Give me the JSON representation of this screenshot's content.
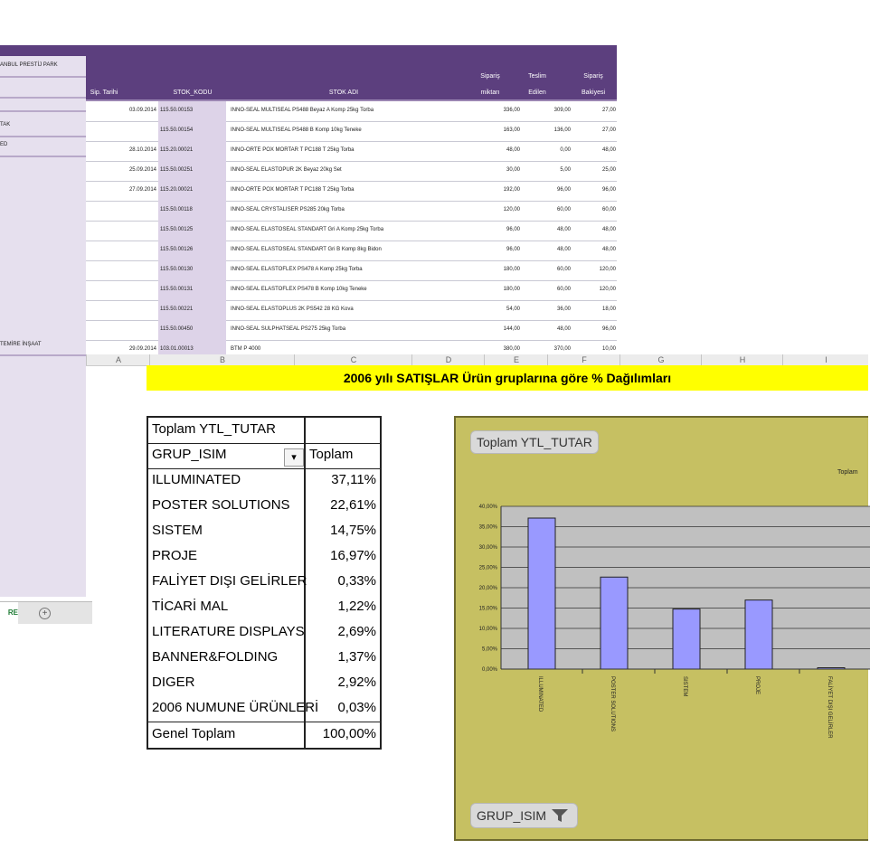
{
  "orders": {
    "headers": {
      "date": "Sip. Tarihi",
      "code": "STOK_KODU",
      "name": "STOK ADI",
      "ordered": [
        "Sipariş",
        "miktarı"
      ],
      "delivered": [
        "Teslim",
        "Edilen"
      ],
      "remaining": [
        "Sipariş",
        "Bakiyesi"
      ]
    },
    "left_labels": [
      "ANBUL PRESTİJ PARK",
      "TAK",
      "ED",
      "TEMİRE İNŞAAT"
    ],
    "rows": [
      {
        "date": "03.09.2014",
        "code": "115.50.00153",
        "name": "INNO-SEAL MULTISEAL PS488 Beyaz A Komp 25kg Torba",
        "ordered": "336,00",
        "delivered": "309,00",
        "remaining": "27,00"
      },
      {
        "date": "",
        "code": "115.50.00154",
        "name": "INNO-SEAL MULTISEAL PS488 B Komp 10kg Teneke",
        "ordered": "163,00",
        "delivered": "136,00",
        "remaining": "27,00"
      },
      {
        "date": "28.10.2014",
        "code": "115.20.00021",
        "name": "INNO-ORTE POX MORTAR T PC188 T 25kg Torba",
        "ordered": "48,00",
        "delivered": "0,00",
        "remaining": "48,00"
      },
      {
        "date": "25.09.2014",
        "code": "115.50.00251",
        "name": "INNO-SEAL ELASTOPUR 2K Beyaz 20kg Set",
        "ordered": "30,00",
        "delivered": "5,00",
        "remaining": "25,00"
      },
      {
        "date": "27.09.2014",
        "code": "115.20.00021",
        "name": "INNO-ORTE POX MORTAR T PC188 T 25kg Torba",
        "ordered": "192,00",
        "delivered": "96,00",
        "remaining": "96,00"
      },
      {
        "date": "",
        "code": "115.50.00118",
        "name": "INNO-SEAL CRYSTALISER PS285 20kg Torba",
        "ordered": "120,00",
        "delivered": "60,00",
        "remaining": "60,00"
      },
      {
        "date": "",
        "code": "115.50.00125",
        "name": "INNO-SEAL ELASTOSEAL STANDART Gri A Komp 25kg Torba",
        "ordered": "96,00",
        "delivered": "48,00",
        "remaining": "48,00"
      },
      {
        "date": "",
        "code": "115.50.00126",
        "name": "INNO-SEAL ELASTOSEAL STANDART Gri B Komp 8kg Bidon",
        "ordered": "96,00",
        "delivered": "48,00",
        "remaining": "48,00"
      },
      {
        "date": "",
        "code": "115.50.00130",
        "name": "INNO-SEAL ELASTOFLEX PS478 A Komp 25kg Torba",
        "ordered": "180,00",
        "delivered": "60,00",
        "remaining": "120,00"
      },
      {
        "date": "",
        "code": "115.50.00131",
        "name": "INNO-SEAL ELASTOFLEX PS478 B Komp 10kg Teneke",
        "ordered": "180,00",
        "delivered": "60,00",
        "remaining": "120,00"
      },
      {
        "date": "",
        "code": "115.50.00221",
        "name": "INNO-SEAL ELASTOPLUS 2K PS542 28 KG Kova",
        "ordered": "54,00",
        "delivered": "36,00",
        "remaining": "18,00"
      },
      {
        "date": "",
        "code": "115.50.00450",
        "name": "INNO-SEAL SULPHATSEAL PS275 25kg Torba",
        "ordered": "144,00",
        "delivered": "48,00",
        "remaining": "96,00"
      },
      {
        "date": "29.09.2014",
        "code": "103.01.00013",
        "name": "BTM P 4000",
        "ordered": "380,00",
        "delivered": "370,00",
        "remaining": "10,00"
      }
    ],
    "sheet_tab": "RE",
    "add_sheet": "+"
  },
  "columns": [
    "A",
    "B",
    "C",
    "D",
    "E",
    "F",
    "G",
    "H",
    "I"
  ],
  "banner": "2006 yılı SATIŞLAR Ürün gruplarına göre % Dağılımları",
  "pivot": {
    "title": "Toplam YTL_TUTAR",
    "row_field": "GRUP_ISIM",
    "value_header": "Toplam",
    "filter_glyph": "▾",
    "rows": [
      {
        "label": "ILLUMINATED",
        "value": "37,11%"
      },
      {
        "label": "POSTER SOLUTIONS",
        "value": "22,61%"
      },
      {
        "label": "SISTEM",
        "value": "14,75%"
      },
      {
        "label": "PROJE",
        "value": "16,97%"
      },
      {
        "label": "FALİYET DIŞI GELİRLER",
        "value": "0,33%"
      },
      {
        "label": "TİCARİ MAL",
        "value": "1,22%"
      },
      {
        "label": "LITERATURE DISPLAYS",
        "value": "2,69%"
      },
      {
        "label": "BANNER&FOLDING",
        "value": "1,37%"
      },
      {
        "label": "DIGER",
        "value": "2,92%"
      },
      {
        "label": "2006 NUMUNE ÜRÜNLERİ",
        "value": "0,03%"
      }
    ],
    "total_label": "Genel Toplam",
    "total_value": "100,00%"
  },
  "chart": {
    "value_chip": "Toplam YTL_TUTAR",
    "axis_chip": "GRUP_ISIM",
    "legend": "Toplam"
  },
  "chart_data": {
    "type": "bar",
    "categories": [
      "ILLUMINATED",
      "POSTER SOLUTIONS",
      "SISTEM",
      "PROJE",
      "FALİYET DIŞI GELİRLER"
    ],
    "series": [
      {
        "name": "Toplam",
        "values": [
          37.11,
          22.61,
          14.75,
          16.97,
          0.33
        ]
      }
    ],
    "yticks": [
      "0,00%",
      "5,00%",
      "10,00%",
      "15,00%",
      "20,00%",
      "25,00%",
      "30,00%",
      "35,00%",
      "40,00%"
    ],
    "ylim": [
      0,
      40
    ],
    "grid": true,
    "legend_position": "top-right",
    "colors": {
      "bar": "#9999ff",
      "plot_bg": "#c0c0c0",
      "chart_bg": "#c6c062"
    }
  },
  "colors": {
    "header": "#5c3f7e",
    "banner": "#ffff00"
  }
}
